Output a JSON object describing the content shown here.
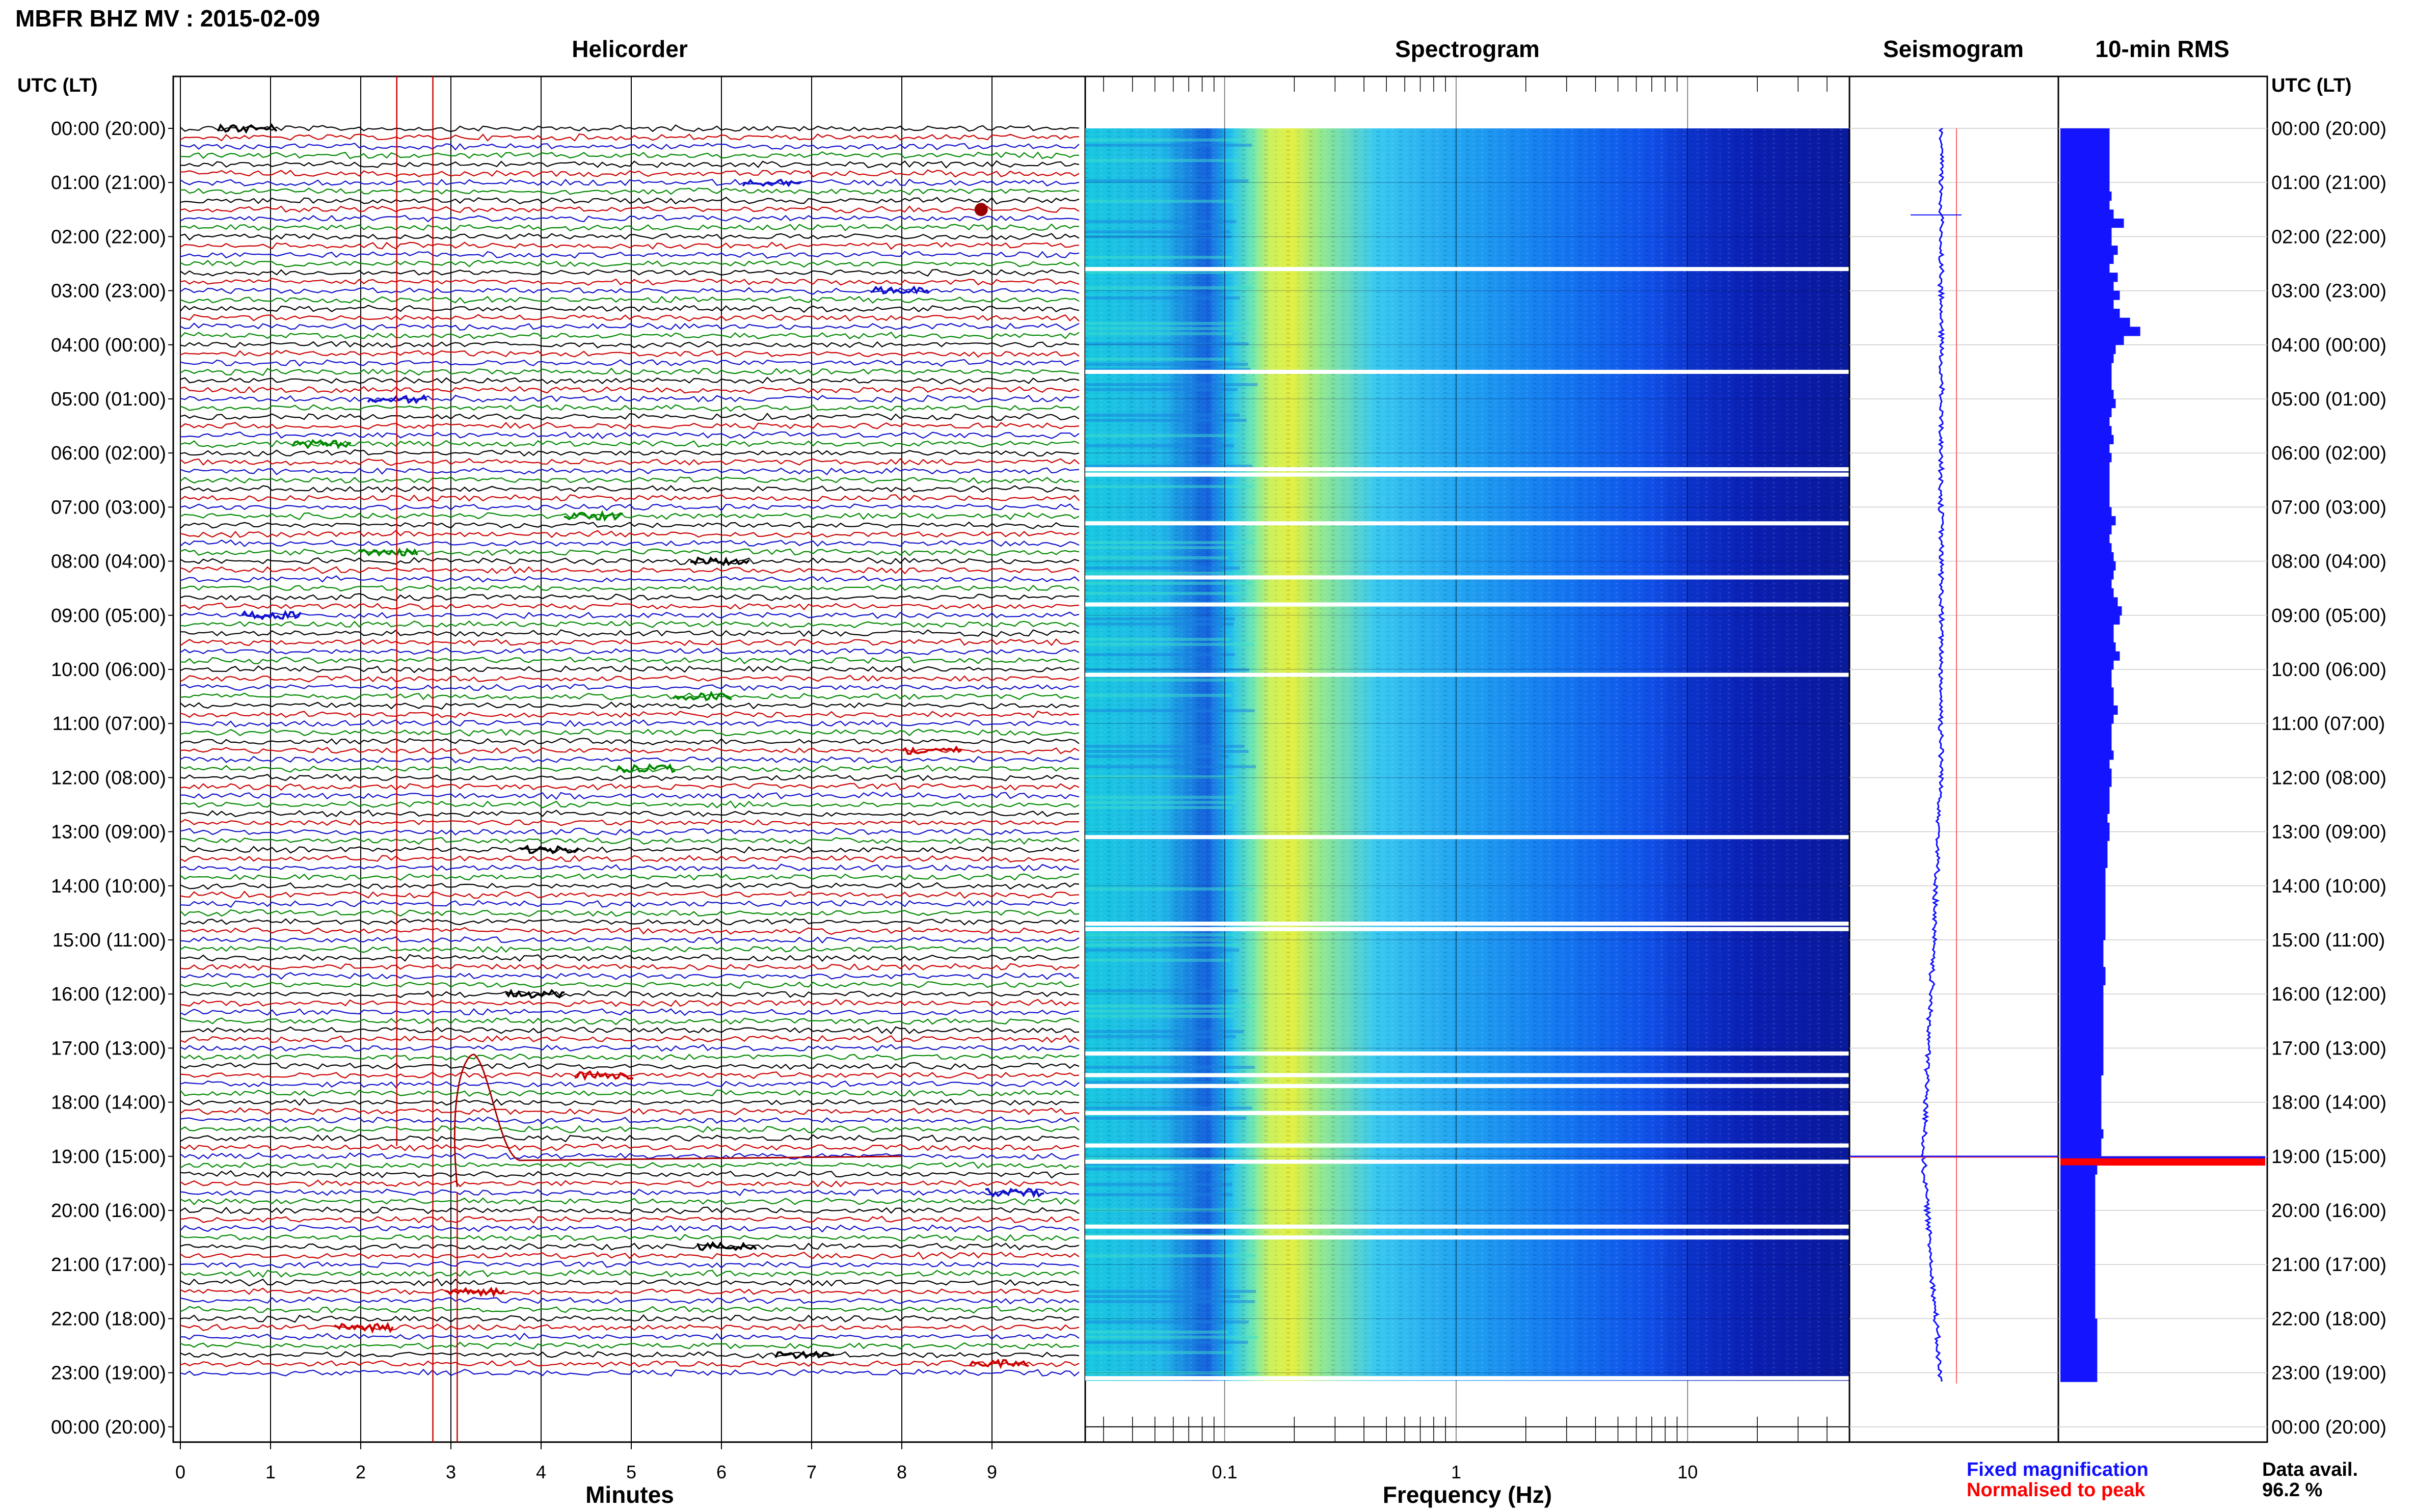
{
  "header": {
    "title": "MBFR BHZ MV : 2015-02-09"
  },
  "panels": {
    "helicorder": "Helicorder",
    "spectrogram": "Spectrogram",
    "seismogram": "Seismogram",
    "rms": "10-min RMS"
  },
  "axes": {
    "left_header": "UTC (LT)",
    "right_header": "UTC (LT)",
    "helicorder_xlabel": "Minutes",
    "spectrogram_xlabel": "Frequency (Hz)"
  },
  "legend": {
    "fixed": "Fixed magnification",
    "normalised": "Normalised to peak",
    "fixed_color": "#1010ff",
    "normalised_color": "#ff0000"
  },
  "data_avail": {
    "label": "Data avail.",
    "value": "96.2 %"
  },
  "hours_labels": [
    "00:00 (20:00)",
    "01:00 (21:00)",
    "02:00 (22:00)",
    "03:00 (23:00)",
    "04:00 (00:00)",
    "05:00 (01:00)",
    "06:00 (02:00)",
    "07:00 (03:00)",
    "08:00 (04:00)",
    "09:00 (05:00)",
    "10:00 (06:00)",
    "11:00 (07:00)",
    "12:00 (08:00)",
    "13:00 (09:00)",
    "14:00 (10:00)",
    "15:00 (11:00)",
    "16:00 (12:00)",
    "17:00 (13:00)",
    "18:00 (14:00)",
    "19:00 (15:00)",
    "20:00 (16:00)",
    "21:00 (17:00)",
    "22:00 (18:00)",
    "23:00 (19:00)",
    "00:00 (20:00)"
  ],
  "chart_data": [
    {
      "type": "line",
      "title": "Helicorder",
      "xlabel": "Minutes",
      "xticks": [
        0,
        1,
        2,
        3,
        4,
        5,
        6,
        7,
        8,
        9
      ],
      "xlim": [
        0,
        10
      ],
      "rows_per_hour": 6,
      "trace_colors": [
        "#000000",
        "#cc0000",
        "#1010cc",
        "#008800"
      ],
      "event_hour": 19.0,
      "event_minute": 3.2
    },
    {
      "type": "heatmap",
      "title": "Spectrogram",
      "xlabel": "Frequency (Hz)",
      "xscale": "log",
      "xticks": [
        "0.1",
        "1",
        "10"
      ],
      "xlim": [
        0.025,
        50
      ],
      "colormap": "jet",
      "gaps_hours": [
        2.6,
        4.5,
        6.3,
        6.4,
        7.3,
        8.3,
        8.8,
        10.1,
        13.1,
        14.7,
        14.8,
        17.1,
        17.5,
        17.7,
        18.2,
        18.8,
        19.1,
        20.3,
        20.5,
        23.1
      ]
    },
    {
      "type": "line",
      "title": "Seismogram",
      "normalised_peak_hour": 19.0
    },
    {
      "type": "bar",
      "title": "10-min RMS",
      "peak_hour": 19.0,
      "data_end_hour": 23.2,
      "relative_rms": [
        0.24,
        0.24,
        0.24,
        0.24,
        0.24,
        0.24,
        0.24,
        0.25,
        0.24,
        0.26,
        0.31,
        0.25,
        0.25,
        0.28,
        0.26,
        0.24,
        0.28,
        0.26,
        0.29,
        0.26,
        0.29,
        0.34,
        0.39,
        0.31,
        0.27,
        0.26,
        0.25,
        0.25,
        0.25,
        0.26,
        0.27,
        0.25,
        0.24,
        0.25,
        0.26,
        0.24,
        0.25,
        0.24,
        0.24,
        0.24,
        0.24,
        0.24,
        0.25,
        0.27,
        0.25,
        0.24,
        0.25,
        0.26,
        0.27,
        0.26,
        0.25,
        0.26,
        0.28,
        0.3,
        0.29,
        0.26,
        0.26,
        0.27,
        0.29,
        0.26,
        0.25,
        0.25,
        0.26,
        0.26,
        0.28,
        0.26,
        0.25,
        0.25,
        0.25,
        0.26,
        0.24,
        0.25,
        0.25,
        0.24,
        0.24,
        0.24,
        0.23,
        0.24,
        0.24,
        0.23,
        0.23,
        0.23,
        0.22,
        0.22,
        0.22,
        0.22,
        0.22,
        0.22,
        0.22,
        0.22,
        0.21,
        0.21,
        0.21,
        0.22,
        0.22,
        0.21,
        0.21,
        0.21,
        0.21,
        0.21,
        0.21,
        0.21,
        0.21,
        0.21,
        0.21,
        0.2,
        0.2,
        0.2,
        0.2,
        0.2,
        0.2,
        0.21,
        0.2,
        0.2,
        1.0,
        0.18,
        0.17,
        0.17,
        0.17,
        0.17,
        0.17,
        0.17,
        0.17,
        0.17,
        0.17,
        0.17,
        0.17,
        0.17,
        0.17,
        0.17,
        0.17,
        0.17,
        0.18,
        0.18,
        0.18,
        0.18,
        0.18,
        0.18,
        0.18
      ]
    }
  ]
}
